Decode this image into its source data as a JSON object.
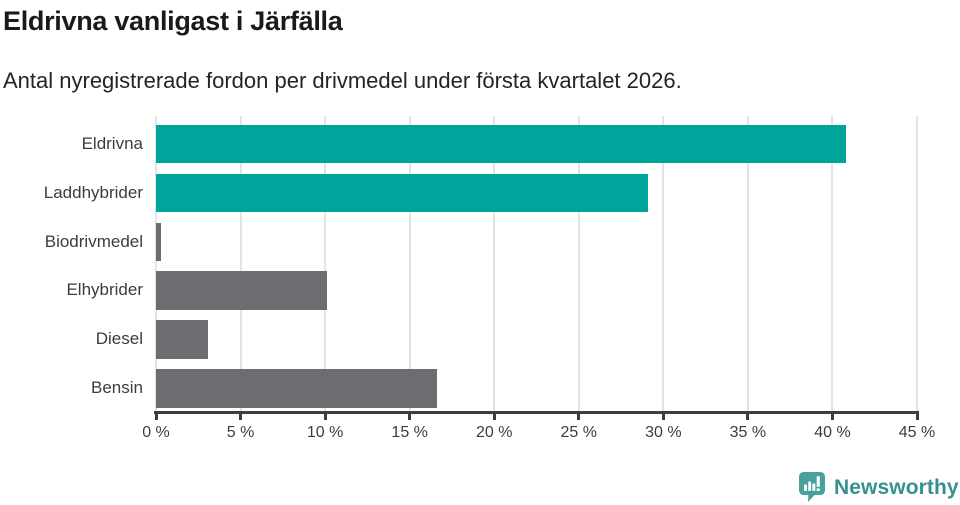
{
  "header": {
    "title": "Eldrivna vanligast i Järfälla",
    "subtitle": "Antal nyregistrerade fordon per drivmedel under första kvartalet 2026."
  },
  "chart_data": {
    "type": "bar",
    "orientation": "horizontal",
    "title": "Eldrivna vanligast i Järfälla",
    "subtitle": "Antal nyregistrerade fordon per drivmedel under första kvartalet 2026.",
    "categories": [
      "Eldrivna",
      "Laddhybrider",
      "Biodrivmedel",
      "Elhybrider",
      "Diesel",
      "Bensin"
    ],
    "values": [
      40.8,
      29.1,
      0.3,
      10.1,
      3.1,
      16.6
    ],
    "unit": "%",
    "bar_colors": [
      "#00a49a",
      "#00a49a",
      "#6c6c71",
      "#6c6c71",
      "#6c6c71",
      "#6c6c71"
    ],
    "xlim": [
      0,
      45
    ],
    "x_ticks": [
      0,
      5,
      10,
      15,
      20,
      25,
      30,
      35,
      40,
      45
    ],
    "x_tick_suffix": " %",
    "grid": true,
    "legend": false
  },
  "footer": {
    "brand_name": "Newsworthy",
    "logo_icon": "newsworthy-logo-icon"
  },
  "colors": {
    "bar_highlight": "#00a49a",
    "bar_default": "#6c6c71",
    "gridline": "#e3e3e3",
    "axis": "#3d3d3d",
    "tick_text": "#3c3c3c",
    "title_text": "#1a1a1a",
    "logo_teal": "#47a29d",
    "brand_text_teal": "#35918e"
  }
}
